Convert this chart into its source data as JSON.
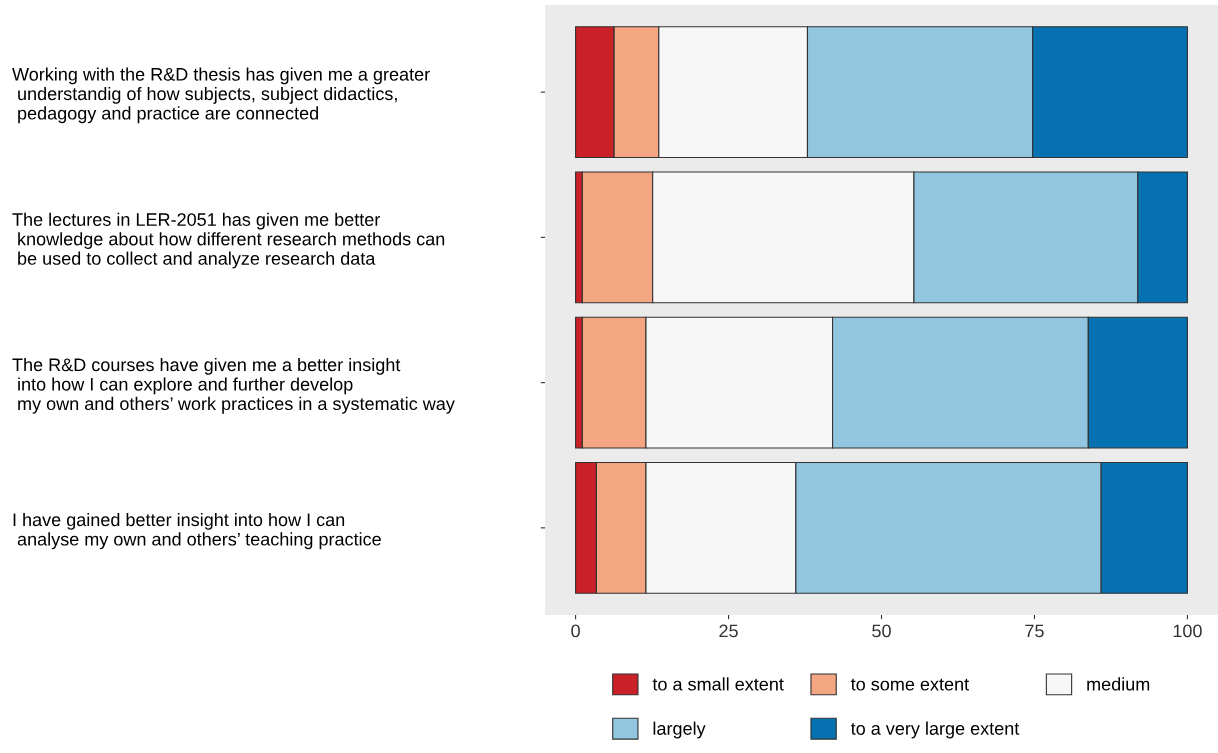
{
  "chart_data": {
    "type": "bar",
    "orientation": "horizontal",
    "stacked": true,
    "categories": [
      "Working with the R&D thesis has given me a greater\n understandig of how subjects, subject didactics,\n pedagogy and practice are connected",
      "The lectures in LER-2051 has given me better\n knowledge about how different research methods can\n be used to collect and analyze research data",
      "The R&D courses have given me a better insight\n into how I can explore and further develop\n my own and others’ work practices in a systematic way",
      "I have gained better insight into how I can\n analyse my own and others’ teaching practice"
    ],
    "series": [
      {
        "name": "to a small extent",
        "color": "#ca2027",
        "values": [
          6.3,
          1.1,
          1.1,
          3.4
        ]
      },
      {
        "name": "to some extent",
        "color": "#f4a582",
        "values": [
          7.3,
          11.5,
          10.4,
          8.1
        ]
      },
      {
        "name": "medium",
        "color": "#f7f7f7",
        "values": [
          24.3,
          42.7,
          30.5,
          24.5
        ]
      },
      {
        "name": "largely",
        "color": "#92c5de",
        "values": [
          36.8,
          36.6,
          41.8,
          49.9
        ]
      },
      {
        "name": "to a very large extent",
        "color": "#0571b0",
        "values": [
          25.3,
          8.1,
          16.2,
          14.1
        ]
      }
    ],
    "xlim": [
      -5,
      105
    ],
    "xticks": [
      0,
      25,
      50,
      75,
      100
    ],
    "grid": false,
    "legend": "bottom"
  }
}
